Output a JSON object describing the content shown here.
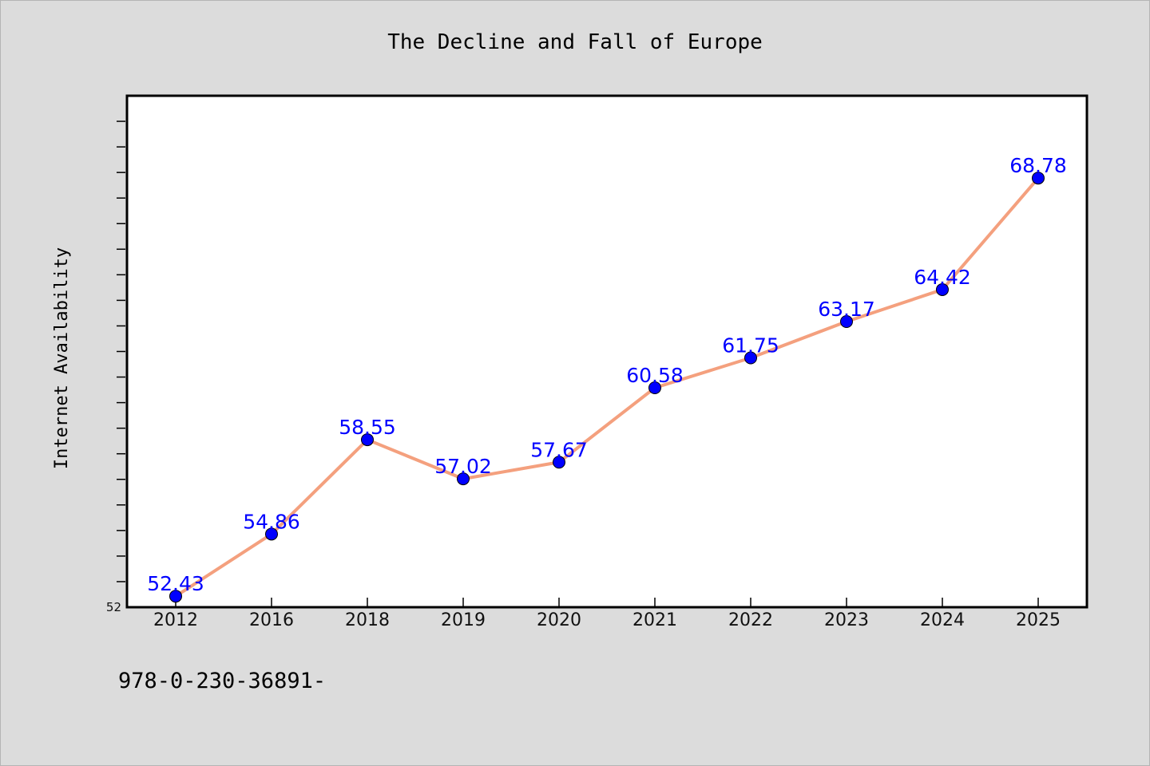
{
  "chart_data": {
    "type": "line",
    "title": "The Decline and Fall of Europe",
    "xlabel": "",
    "ylabel": "Internet Availability",
    "categories": [
      "2012",
      "2016",
      "2018",
      "2019",
      "2020",
      "2021",
      "2022",
      "2023",
      "2024",
      "2025"
    ],
    "series": [
      {
        "values": [
          52.43,
          54.86,
          58.55,
          57.02,
          57.67,
          60.58,
          61.75,
          63.17,
          64.42,
          68.78
        ]
      }
    ],
    "ytick_labels": [
      "52"
    ],
    "ylim": [
      52,
      72
    ],
    "minor_tick_step": 1,
    "grid": false,
    "data_labels": true,
    "line_color": "#f4a07e",
    "marker_color": "#0000ff",
    "label_color": "#0000ff"
  },
  "footer": {
    "isbn": "978-0-230-36891-"
  }
}
